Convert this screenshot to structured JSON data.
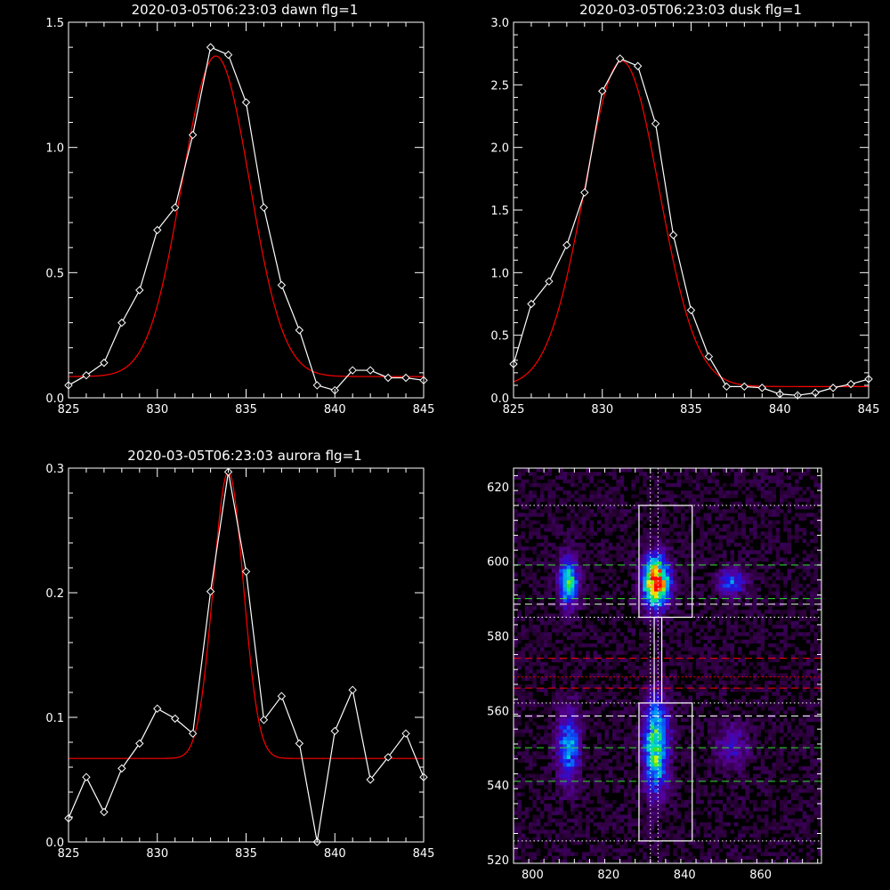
{
  "chart_data": [
    {
      "id": "dawn",
      "type": "line",
      "title": "2020-03-05T06:23:03 dawn flg=1",
      "xlim": [
        825,
        845
      ],
      "ylim": [
        0,
        1.5
      ],
      "xticks": [
        825,
        830,
        835,
        840,
        845
      ],
      "yticks": [
        0.0,
        0.5,
        1.0,
        1.5
      ],
      "ytick_labels": [
        "0.0",
        "0.5",
        "1.0",
        "1.5"
      ],
      "series": [
        {
          "kind": "data",
          "color": "#ffffff",
          "marker": "diamond",
          "x": [
            825,
            826,
            827,
            828,
            829,
            830,
            831,
            832,
            833,
            834,
            835,
            836,
            837,
            838,
            839,
            840,
            841,
            842,
            843,
            844,
            845
          ],
          "y": [
            0.05,
            0.09,
            0.14,
            0.3,
            0.43,
            0.67,
            0.76,
            1.05,
            1.4,
            1.37,
            1.18,
            0.76,
            0.45,
            0.27,
            0.05,
            0.03,
            0.11,
            0.11,
            0.08,
            0.08,
            0.07
          ]
        },
        {
          "kind": "fit",
          "color": "#ff0000",
          "gauss": {
            "a": 1.28,
            "mu": 833.3,
            "sigma": 1.9,
            "c": 0.085
          }
        }
      ]
    },
    {
      "id": "dusk",
      "type": "line",
      "title": "2020-03-05T06:23:03 dusk flg=1",
      "xlim": [
        825,
        845
      ],
      "ylim": [
        0,
        3.0
      ],
      "xticks": [
        825,
        830,
        835,
        840,
        845
      ],
      "yticks": [
        0.0,
        0.5,
        1.0,
        1.5,
        2.0,
        2.5,
        3.0
      ],
      "ytick_labels": [
        "0.0",
        "0.5",
        "1.0",
        "1.5",
        "2.0",
        "2.5",
        "3.0"
      ],
      "series": [
        {
          "kind": "data",
          "color": "#ffffff",
          "marker": "diamond",
          "x": [
            825,
            826,
            827,
            828,
            829,
            830,
            831,
            832,
            833,
            834,
            835,
            836,
            837,
            838,
            839,
            840,
            841,
            842,
            843,
            844,
            845
          ],
          "y": [
            0.27,
            0.75,
            0.93,
            1.22,
            1.64,
            2.45,
            2.71,
            2.65,
            2.19,
            1.3,
            0.7,
            0.33,
            0.09,
            0.09,
            0.08,
            0.03,
            0.02,
            0.04,
            0.08,
            0.11,
            0.15
          ]
        },
        {
          "kind": "fit",
          "color": "#ff0000",
          "gauss": {
            "a": 2.6,
            "mu": 831.1,
            "sigma": 2.1,
            "c": 0.09
          }
        }
      ]
    },
    {
      "id": "aurora",
      "type": "line",
      "title": "2020-03-05T06:23:03 aurora flg=1",
      "xlim": [
        825,
        845
      ],
      "ylim": [
        0,
        0.3
      ],
      "xticks": [
        825,
        830,
        835,
        840,
        845
      ],
      "yticks": [
        0.0,
        0.1,
        0.2,
        0.3
      ],
      "ytick_labels": [
        "0.0",
        "0.1",
        "0.2",
        "0.3"
      ],
      "series": [
        {
          "kind": "data",
          "color": "#ffffff",
          "marker": "diamond",
          "x": [
            825,
            826,
            827,
            828,
            829,
            830,
            831,
            832,
            833,
            834,
            835,
            836,
            837,
            838,
            839,
            840,
            841,
            842,
            843,
            844,
            845
          ],
          "y": [
            0.019,
            0.052,
            0.024,
            0.059,
            0.079,
            0.107,
            0.099,
            0.087,
            0.201,
            0.297,
            0.217,
            0.098,
            0.117,
            0.079,
            0.0,
            0.089,
            0.122,
            0.05,
            0.068,
            0.087,
            0.052
          ]
        },
        {
          "kind": "fit",
          "color": "#ff0000",
          "gauss": {
            "a": 0.23,
            "mu": 834.0,
            "sigma": 0.85,
            "c": 0.067
          }
        }
      ]
    },
    {
      "id": "image",
      "type": "heatmap",
      "title": "",
      "xlim": [
        795,
        876
      ],
      "ylim": [
        519,
        625
      ],
      "xticks": [
        800,
        820,
        840,
        860
      ],
      "yticks": [
        520,
        540,
        560,
        580,
        600,
        620
      ],
      "blobs": [
        {
          "cx": 809,
          "cy": 594,
          "sx": 1.8,
          "sy": 4.5,
          "amp": 0.55
        },
        {
          "cx": 832,
          "cy": 594,
          "sx": 2.3,
          "sy": 4.5,
          "amp": 1.0
        },
        {
          "cx": 852,
          "cy": 594,
          "sx": 2.5,
          "sy": 2.5,
          "amp": 0.32
        },
        {
          "cx": 809,
          "cy": 550,
          "sx": 2.0,
          "sy": 6.5,
          "amp": 0.42
        },
        {
          "cx": 832,
          "cy": 550,
          "sx": 2.2,
          "sy": 8.5,
          "amp": 0.62
        },
        {
          "cx": 852,
          "cy": 550,
          "sx": 3.0,
          "sy": 4.0,
          "amp": 0.2
        }
      ],
      "boxes": [
        {
          "x0": 828,
          "x1": 842,
          "y0": 585,
          "y1": 615,
          "color": "#ffffff"
        },
        {
          "x0": 832,
          "x1": 834,
          "y0": 562,
          "y1": 585,
          "color": "#ffffff"
        },
        {
          "x0": 828,
          "x1": 842,
          "y0": 525,
          "y1": 562,
          "color": "#ffffff"
        }
      ],
      "hlines": [
        {
          "y": 615,
          "color": "#ffffff",
          "style": "dotted"
        },
        {
          "y": 599,
          "color": "#33dd33",
          "style": "dashed"
        },
        {
          "y": 590,
          "color": "#33dd33",
          "style": "dashed"
        },
        {
          "y": 588.5,
          "color": "#ffffff",
          "style": "dashed"
        },
        {
          "y": 585,
          "color": "#ffffff",
          "style": "dotted"
        },
        {
          "y": 574,
          "color": "#ff0000",
          "style": "dashed"
        },
        {
          "y": 569,
          "color": "#ff0000",
          "style": "dotted"
        },
        {
          "y": 566,
          "color": "#ff0000",
          "style": "dashed"
        },
        {
          "y": 562,
          "color": "#ffffff",
          "style": "dotted"
        },
        {
          "y": 558.5,
          "color": "#ffffff",
          "style": "dashed"
        },
        {
          "y": 550,
          "color": "#33dd33",
          "style": "dashed"
        },
        {
          "y": 541,
          "color": "#33dd33",
          "style": "dashed"
        },
        {
          "y": 525,
          "color": "#ffffff",
          "style": "dotted"
        }
      ],
      "vlines": [
        {
          "x": 831,
          "color": "#ffffff",
          "style": "dotted"
        },
        {
          "x": 833,
          "color": "#ffffff",
          "style": "dotted"
        }
      ]
    }
  ]
}
